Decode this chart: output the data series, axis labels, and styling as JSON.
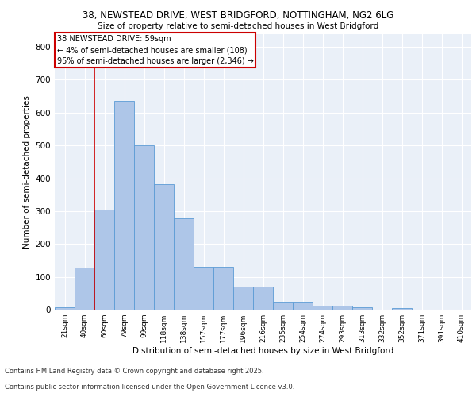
{
  "title_line1": "38, NEWSTEAD DRIVE, WEST BRIDGFORD, NOTTINGHAM, NG2 6LG",
  "title_line2": "Size of property relative to semi-detached houses in West Bridgford",
  "xlabel": "Distribution of semi-detached houses by size in West Bridgford",
  "ylabel": "Number of semi-detached properties",
  "bar_labels": [
    "21sqm",
    "40sqm",
    "60sqm",
    "79sqm",
    "99sqm",
    "118sqm",
    "138sqm",
    "157sqm",
    "177sqm",
    "196sqm",
    "216sqm",
    "235sqm",
    "254sqm",
    "274sqm",
    "293sqm",
    "313sqm",
    "332sqm",
    "352sqm",
    "371sqm",
    "391sqm",
    "410sqm"
  ],
  "bar_values": [
    8,
    128,
    305,
    635,
    500,
    383,
    278,
    130,
    130,
    70,
    70,
    25,
    25,
    11,
    11,
    8,
    0,
    5,
    0,
    0,
    0
  ],
  "bar_color": "#aec6e8",
  "bar_edge_color": "#5b9bd5",
  "vline_color": "#cc0000",
  "annotation_title": "38 NEWSTEAD DRIVE: 59sqm",
  "annotation_line1": "← 4% of semi-detached houses are smaller (108)",
  "annotation_line2": "95% of semi-detached houses are larger (2,346) →",
  "annotation_box_color": "#cc0000",
  "ylim": [
    0,
    840
  ],
  "yticks": [
    0,
    100,
    200,
    300,
    400,
    500,
    600,
    700,
    800
  ],
  "bg_color": "#eaf0f8",
  "grid_color": "#ffffff",
  "footer_line1": "Contains HM Land Registry data © Crown copyright and database right 2025.",
  "footer_line2": "Contains public sector information licensed under the Open Government Licence v3.0."
}
